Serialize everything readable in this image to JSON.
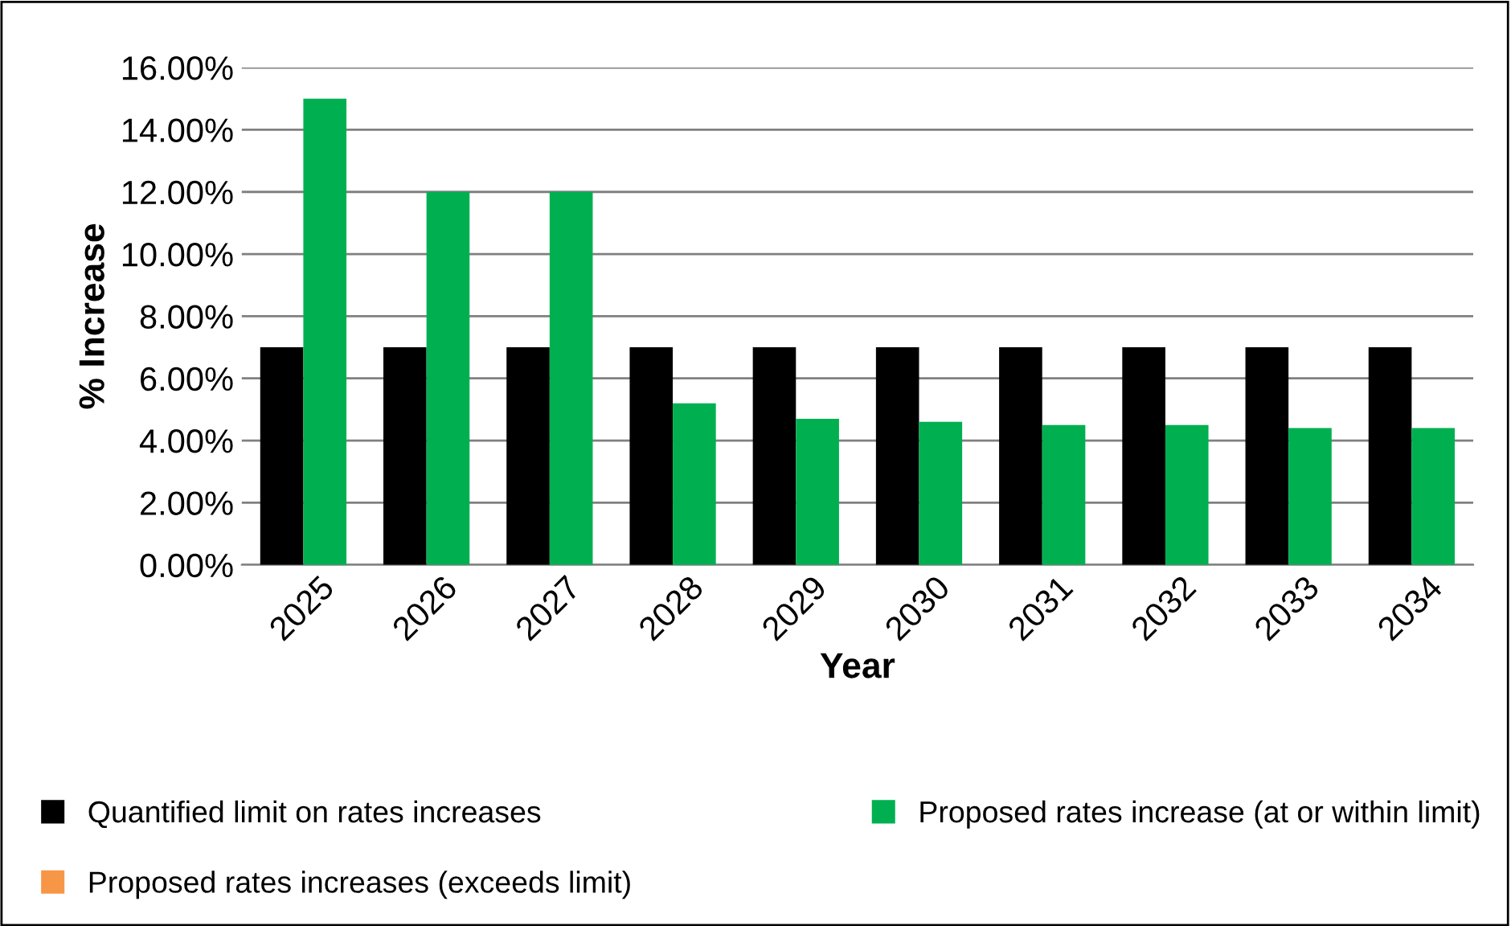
{
  "chart_data": {
    "type": "bar",
    "xlabel": "Year",
    "ylabel": "% Increase",
    "categories": [
      "2025",
      "2026",
      "2027",
      "2028",
      "2029",
      "2030",
      "2031",
      "2032",
      "2033",
      "2034"
    ],
    "series": [
      {
        "name": "Quantified limit on rates increases",
        "color": "#000000",
        "values": [
          7.0,
          7.0,
          7.0,
          7.0,
          7.0,
          7.0,
          7.0,
          7.0,
          7.0,
          7.0
        ]
      },
      {
        "name": "Proposed rates increase (at or within limit)",
        "color": "#00b050",
        "values": [
          15.0,
          12.0,
          12.0,
          5.2,
          4.7,
          4.6,
          4.5,
          4.5,
          4.4,
          4.4
        ]
      },
      {
        "name": "Proposed rates increases (exceeds limit)",
        "color": "#f79646",
        "values": [
          0,
          0,
          0,
          0,
          0,
          0,
          0,
          0,
          0,
          0
        ]
      }
    ],
    "ylim": [
      0,
      16
    ],
    "yticks": [
      {
        "value": 0,
        "label": "0.00%"
      },
      {
        "value": 2,
        "label": "2.00%"
      },
      {
        "value": 4,
        "label": "4.00%"
      },
      {
        "value": 6,
        "label": "6.00%"
      },
      {
        "value": 8,
        "label": "8.00%"
      },
      {
        "value": 10,
        "label": "10.00%"
      },
      {
        "value": 12,
        "label": "12.00%"
      },
      {
        "value": 14,
        "label": "14.00%"
      },
      {
        "value": 16,
        "label": "16.00%"
      }
    ],
    "grid": "y",
    "legend": "bottom"
  }
}
